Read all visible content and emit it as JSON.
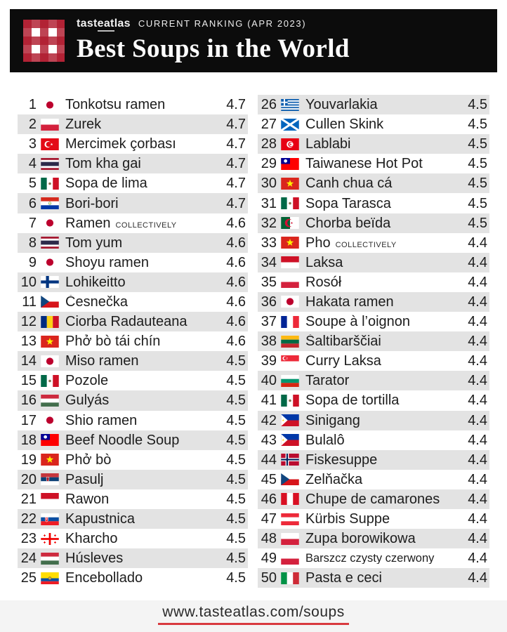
{
  "header": {
    "brand": {
      "pre": "tast",
      "underlined": "eat",
      "post": "las"
    },
    "ranking_label": "CURRENT RANKING (APR 2023)",
    "title": "Best Soups in the World"
  },
  "footer": {
    "url": "www.tasteatlas.com/soups"
  },
  "colors": {
    "header_bg": "#0c0c0c",
    "stripe_gray": "#e3e3e3",
    "logo_red": "#b01b2e",
    "underline_red": "#d93a3f"
  },
  "chart_data": {
    "type": "table",
    "title": "Best Soups in the World",
    "subtitle": "tasteatlas CURRENT RANKING (APR 2023)",
    "columns": [
      "rank",
      "country",
      "soup",
      "rating"
    ],
    "rows": [
      {
        "rank": 1,
        "country": "Japan",
        "name": "Tonkotsu ramen",
        "note": "",
        "rating": "4.7"
      },
      {
        "rank": 2,
        "country": "Poland",
        "name": "Żurek",
        "note": "",
        "rating": "4.7"
      },
      {
        "rank": 3,
        "country": "Turkey",
        "name": "Mercimek çorbası",
        "note": "",
        "rating": "4.7"
      },
      {
        "rank": 4,
        "country": "Thailand",
        "name": "Tom kha gai",
        "note": "",
        "rating": "4.7"
      },
      {
        "rank": 5,
        "country": "Mexico",
        "name": "Sopa de lima",
        "note": "",
        "rating": "4.7"
      },
      {
        "rank": 6,
        "country": "Paraguay",
        "name": "Bori-bori",
        "note": "",
        "rating": "4.7"
      },
      {
        "rank": 7,
        "country": "Japan",
        "name": "Ramen",
        "note": "COLLECTIVELY",
        "rating": "4.6"
      },
      {
        "rank": 8,
        "country": "Thailand",
        "name": "Tom yum",
        "note": "",
        "rating": "4.6"
      },
      {
        "rank": 9,
        "country": "Japan",
        "name": "Shoyu ramen",
        "note": "",
        "rating": "4.6"
      },
      {
        "rank": 10,
        "country": "Finland",
        "name": "Lohikeitto",
        "note": "",
        "rating": "4.6"
      },
      {
        "rank": 11,
        "country": "Czech Republic",
        "name": "Česnečka",
        "note": "",
        "rating": "4.6"
      },
      {
        "rank": 12,
        "country": "Romania",
        "name": "Ciorba Radauteana",
        "note": "",
        "rating": "4.6"
      },
      {
        "rank": 13,
        "country": "Vietnam",
        "name": "Phở bò tái chín",
        "note": "",
        "rating": "4.6"
      },
      {
        "rank": 14,
        "country": "Japan",
        "name": "Miso ramen",
        "note": "",
        "rating": "4.5"
      },
      {
        "rank": 15,
        "country": "Mexico",
        "name": "Pozole",
        "note": "",
        "rating": "4.5"
      },
      {
        "rank": 16,
        "country": "Hungary",
        "name": "Gulyás",
        "note": "",
        "rating": "4.5"
      },
      {
        "rank": 17,
        "country": "Japan",
        "name": "Shio ramen",
        "note": "",
        "rating": "4.5"
      },
      {
        "rank": 18,
        "country": "Taiwan",
        "name": "Beef Noodle Soup",
        "note": "",
        "rating": "4.5"
      },
      {
        "rank": 19,
        "country": "Vietnam",
        "name": "Phở bò",
        "note": "",
        "rating": "4.5"
      },
      {
        "rank": 20,
        "country": "Serbia",
        "name": "Pasulj",
        "note": "",
        "rating": "4.5"
      },
      {
        "rank": 21,
        "country": "Indonesia",
        "name": "Rawon",
        "note": "",
        "rating": "4.5"
      },
      {
        "rank": 22,
        "country": "Slovakia",
        "name": "Kapustnica",
        "note": "",
        "rating": "4.5"
      },
      {
        "rank": 23,
        "country": "Georgia",
        "name": "Kharcho",
        "note": "",
        "rating": "4.5"
      },
      {
        "rank": 24,
        "country": "Hungary",
        "name": "Húsleves",
        "note": "",
        "rating": "4.5"
      },
      {
        "rank": 25,
        "country": "Ecuador",
        "name": "Encebollado",
        "note": "",
        "rating": "4.5"
      },
      {
        "rank": 26,
        "country": "Greece",
        "name": "Youvarlakia",
        "note": "",
        "rating": "4.5"
      },
      {
        "rank": 27,
        "country": "Scotland",
        "name": "Cullen Skink",
        "note": "",
        "rating": "4.5"
      },
      {
        "rank": 28,
        "country": "Tunisia",
        "name": "Lablabi",
        "note": "",
        "rating": "4.5"
      },
      {
        "rank": 29,
        "country": "Taiwan",
        "name": "Taiwanese Hot Pot",
        "note": "",
        "rating": "4.5"
      },
      {
        "rank": 30,
        "country": "Vietnam",
        "name": "Canh chua cá",
        "note": "",
        "rating": "4.5"
      },
      {
        "rank": 31,
        "country": "Mexico",
        "name": "Sopa Tarasca",
        "note": "",
        "rating": "4.5"
      },
      {
        "rank": 32,
        "country": "Algeria",
        "name": "Chorba beïda",
        "note": "",
        "rating": "4.5"
      },
      {
        "rank": 33,
        "country": "Vietnam",
        "name": "Pho",
        "note": "COLLECTIVELY",
        "rating": "4.4"
      },
      {
        "rank": 34,
        "country": "Indonesia",
        "name": "Laksa",
        "note": "",
        "rating": "4.4"
      },
      {
        "rank": 35,
        "country": "Poland",
        "name": "Rosół",
        "note": "",
        "rating": "4.4"
      },
      {
        "rank": 36,
        "country": "Japan",
        "name": "Hakata ramen",
        "note": "",
        "rating": "4.4"
      },
      {
        "rank": 37,
        "country": "France",
        "name": "Soupe à l’oignon",
        "note": "",
        "rating": "4.4"
      },
      {
        "rank": 38,
        "country": "Lithuania",
        "name": "Šaltibarščiai",
        "note": "",
        "rating": "4.4"
      },
      {
        "rank": 39,
        "country": "Singapore",
        "name": "Curry Laksa",
        "note": "",
        "rating": "4.4"
      },
      {
        "rank": 40,
        "country": "Bulgaria",
        "name": "Tarator",
        "note": "",
        "rating": "4.4"
      },
      {
        "rank": 41,
        "country": "Mexico",
        "name": "Sopa de tortilla",
        "note": "",
        "rating": "4.4"
      },
      {
        "rank": 42,
        "country": "Philippines",
        "name": "Sinigang",
        "note": "",
        "rating": "4.4"
      },
      {
        "rank": 43,
        "country": "Philippines",
        "name": "Bulalô",
        "note": "",
        "rating": "4.4"
      },
      {
        "rank": 44,
        "country": "Norway",
        "name": "Fiskesuppe",
        "note": "",
        "rating": "4.4"
      },
      {
        "rank": 45,
        "country": "Czech Republic",
        "name": "Zelňačka",
        "note": "",
        "rating": "4.4"
      },
      {
        "rank": 46,
        "country": "Peru",
        "name": "Chupe de camarones",
        "note": "",
        "rating": "4.4"
      },
      {
        "rank": 47,
        "country": "Austria",
        "name": "Kürbis Suppe",
        "note": "",
        "rating": "4.4"
      },
      {
        "rank": 48,
        "country": "Poland",
        "name": "Zupa borowikowa",
        "note": "",
        "rating": "4.4"
      },
      {
        "rank": 49,
        "country": "Poland",
        "name": "Barszcz czysty czerwony",
        "note": "",
        "rating": "4.4"
      },
      {
        "rank": 50,
        "country": "Italy",
        "name": "Pasta e ceci",
        "note": "",
        "rating": "4.4"
      }
    ]
  }
}
